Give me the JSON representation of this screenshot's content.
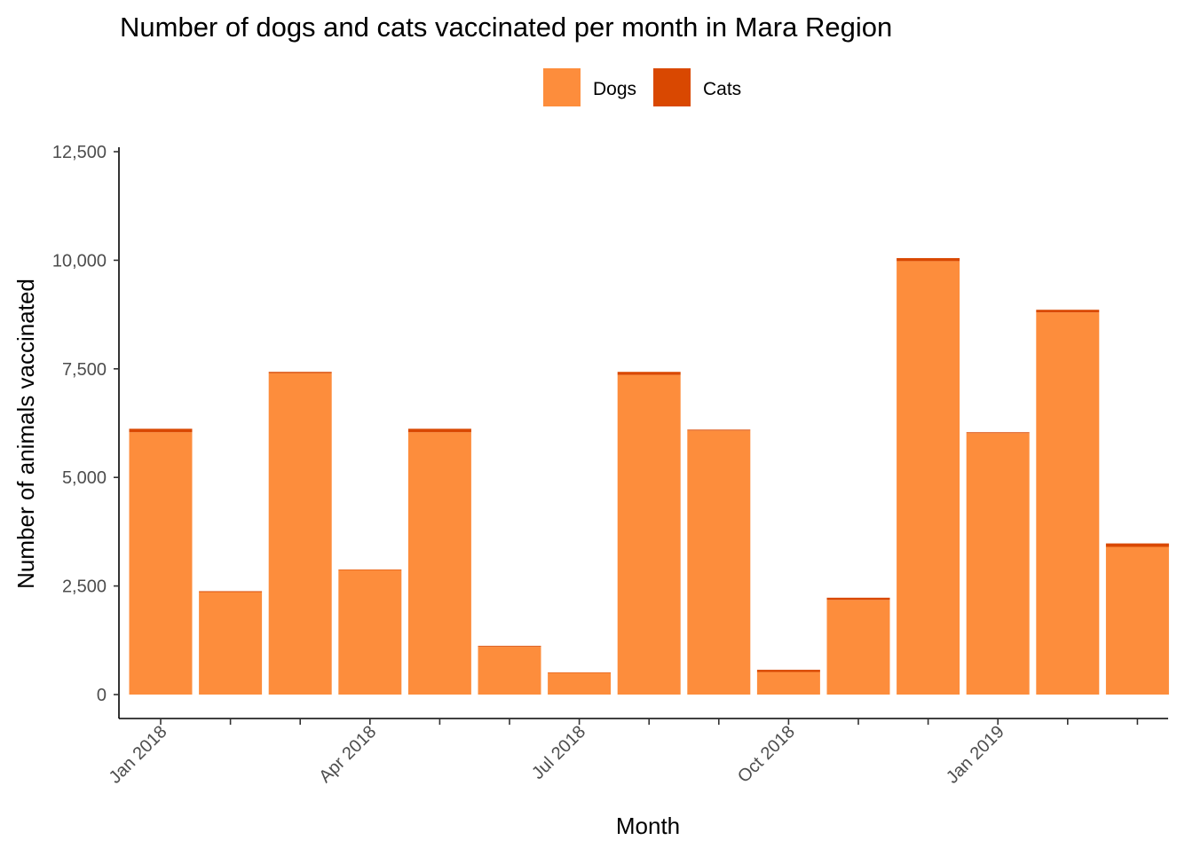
{
  "chart_data": {
    "type": "bar",
    "stacked": true,
    "title": "Number of dogs and cats vaccinated per month in Mara Region",
    "xlabel": "Month",
    "ylabel": "Number of animals vaccinated",
    "ylim": [
      0,
      12500
    ],
    "yticks": [
      0,
      2500,
      5000,
      7500,
      10000,
      12500
    ],
    "ytick_labels": [
      "0",
      "2,500",
      "5,000",
      "7,500",
      "10,000",
      "12,500"
    ],
    "categories": [
      "2018-01",
      "2018-02",
      "2018-03",
      "2018-04",
      "2018-05",
      "2018-06",
      "2018-07",
      "2018-08",
      "2018-09",
      "2018-10",
      "2018-11",
      "2018-12",
      "2019-01",
      "2019-02",
      "2019-03"
    ],
    "xtick_labels": [
      {
        "category": "2018-01",
        "label": "Jan 2018"
      },
      {
        "category": "2018-04",
        "label": "Apr 2018"
      },
      {
        "category": "2018-07",
        "label": "Jul 2018"
      },
      {
        "category": "2018-10",
        "label": "Oct 2018"
      },
      {
        "category": "2019-01",
        "label": "Jan 2019"
      }
    ],
    "series": [
      {
        "name": "Dogs",
        "color": "#FD8D3C",
        "values": [
          6040,
          2360,
          7400,
          2870,
          6040,
          1100,
          500,
          7360,
          6080,
          520,
          2180,
          9980,
          6020,
          8800,
          3400
        ]
      },
      {
        "name": "Cats",
        "color": "#D94801",
        "values": [
          80,
          20,
          30,
          10,
          80,
          20,
          10,
          70,
          20,
          50,
          50,
          70,
          20,
          60,
          80
        ]
      }
    ],
    "legend_position": "top",
    "grid": false
  }
}
